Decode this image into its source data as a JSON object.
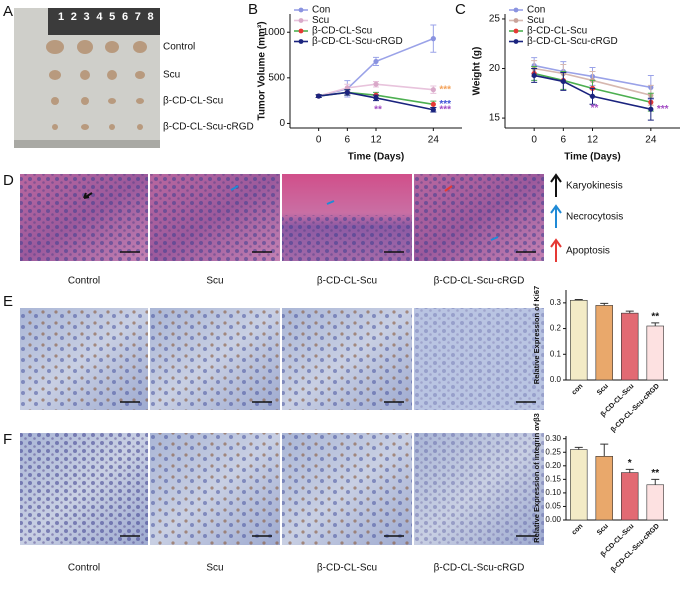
{
  "panels": [
    "A",
    "B",
    "C",
    "D",
    "E",
    "F"
  ],
  "panel_a": {
    "ruler": [
      "1",
      "2",
      "3",
      "4",
      "5",
      "6",
      "7",
      "8"
    ],
    "labels": [
      "Control",
      "Scu",
      "β-CD-CL-Scu",
      "β-CD-CL-Scu-cRGD"
    ]
  },
  "panel_d": {
    "labels": [
      "Control",
      "Scu",
      "β-CD-CL-Scu",
      "β-CD-CL-Scu-cRGD"
    ],
    "legend": [
      "Karyokinesis",
      "Necrocytosis",
      "Apoptosis"
    ]
  },
  "panel_f": {
    "labels": [
      "Control",
      "Scu",
      "β-CD-CL-Scu",
      "β-CD-CL-Scu-cRGD"
    ]
  },
  "chart_data": [
    {
      "type": "line",
      "ylabel": "Tumor Volume (mm³)",
      "xlabel": "Time (Days)",
      "x": [
        0,
        6,
        12,
        24
      ],
      "xlim": [
        -6,
        30
      ],
      "xticks": [
        0,
        6,
        12,
        24
      ],
      "ylim": [
        -50,
        1200
      ],
      "yticks": [
        0,
        500,
        1000
      ],
      "series": [
        {
          "name": "Con",
          "color": "#9aa2e8",
          "marker_color": "#8a93e0",
          "values": [
            300,
            380,
            680,
            930
          ],
          "errors": [
            15,
            90,
            45,
            150
          ]
        },
        {
          "name": "Scu",
          "color": "#e8c3dc",
          "marker_color": "#d9a9c9",
          "values": [
            300,
            390,
            430,
            370
          ],
          "errors": [
            15,
            40,
            30,
            40
          ]
        },
        {
          "name": "β-CD-CL-Scu",
          "color": "#4caf50",
          "marker_color": "#e53935",
          "values": [
            300,
            340,
            310,
            210
          ],
          "errors": [
            15,
            30,
            30,
            35
          ]
        },
        {
          "name": "β-CD-CL-Scu-cRGD",
          "color": "#1a237e",
          "marker_color": "#1a237e",
          "values": [
            300,
            340,
            280,
            150
          ],
          "errors": [
            15,
            30,
            30,
            25
          ]
        }
      ],
      "annotations": [
        {
          "text": "***",
          "color": "#f4a259",
          "x": 24,
          "series": "Scu"
        },
        {
          "text": "***",
          "color": "#3f51d6",
          "x": 24,
          "series": "β-CD-CL-Scu"
        },
        {
          "text": "***",
          "color": "#a24cc4",
          "x": 24,
          "series": "β-CD-CL-Scu-cRGD"
        },
        {
          "text": "**",
          "color": "#a24cc4",
          "x": 12,
          "series": "β-CD-CL-Scu-cRGD"
        }
      ]
    },
    {
      "type": "line",
      "ylabel": "Weight (g)",
      "xlabel": "Time (Days)",
      "x": [
        0,
        6,
        12,
        24
      ],
      "xlim": [
        -6,
        30
      ],
      "xticks": [
        0,
        6,
        12,
        24
      ],
      "ylim": [
        14,
        25.5
      ],
      "yticks": [
        15,
        20,
        25
      ],
      "series": [
        {
          "name": "Con",
          "color": "#9aa2e8",
          "marker_color": "#8a93e0",
          "values": [
            20.3,
            19.7,
            19.2,
            18.1
          ],
          "errors": [
            0.8,
            1.0,
            0.9,
            1.2
          ]
        },
        {
          "name": "Scu",
          "color": "#d6b8b0",
          "marker_color": "#c9a29a",
          "values": [
            20.0,
            19.5,
            18.8,
            17.3
          ],
          "errors": [
            0.8,
            0.9,
            0.9,
            1.0
          ]
        },
        {
          "name": "β-CD-CL-Scu",
          "color": "#4caf50",
          "marker_color": "#e53935",
          "values": [
            19.5,
            18.8,
            18.0,
            16.6
          ],
          "errors": [
            0.7,
            0.9,
            0.8,
            0.9
          ]
        },
        {
          "name": "β-CD-CL-Scu-cRGD",
          "color": "#1a237e",
          "marker_color": "#1a237e",
          "values": [
            19.3,
            18.7,
            17.2,
            15.9
          ],
          "errors": [
            0.7,
            0.9,
            0.8,
            1.1
          ]
        }
      ],
      "annotations": [
        {
          "text": "**",
          "color": "#a24cc4",
          "x": 12,
          "series": "β-CD-CL-Scu-cRGD"
        },
        {
          "text": "***",
          "color": "#a24cc4",
          "x": 24,
          "series": "β-CD-CL-Scu-cRGD"
        }
      ]
    },
    {
      "type": "bar",
      "ylabel": "Relative Expression of Ki67",
      "categories": [
        "con",
        "Scu",
        "β-CD-CL-Scu",
        "β-CD-CL-Scu-cRGD"
      ],
      "values": [
        0.31,
        0.29,
        0.26,
        0.21
      ],
      "errors": [
        0.003,
        0.008,
        0.008,
        0.012
      ],
      "colors": [
        "#f3ebc6",
        "#e9a86b",
        "#e26a73",
        "#fde1e1"
      ],
      "ylim": [
        0,
        0.35
      ],
      "yticks": [
        {
          "value": 0,
          "label": "0.0"
        },
        0.1,
        0.2,
        0.3
      ],
      "annotations": [
        {
          "text": "**",
          "category": "β-CD-CL-Scu-cRGD"
        }
      ]
    },
    {
      "type": "bar",
      "ylabel": "Relative Expression of integrin αvβ3",
      "categories": [
        "con",
        "Scu",
        "β-CD-CL-Scu",
        "β-CD-CL-Scu-cRGD"
      ],
      "values": [
        0.26,
        0.235,
        0.175,
        0.13
      ],
      "errors": [
        0.008,
        0.045,
        0.012,
        0.02
      ],
      "colors": [
        "#f3ebc6",
        "#e9a86b",
        "#e26a73",
        "#fde1e1"
      ],
      "ylim": [
        0,
        0.31
      ],
      "yticks": [
        {
          "value": 0,
          "label": "0.00"
        },
        0.05,
        {
          "value": 0.1,
          "label": "0.10"
        },
        0.15,
        {
          "value": 0.2,
          "label": "0.20"
        },
        0.25,
        {
          "value": 0.3,
          "label": "0.30"
        }
      ],
      "annotations": [
        {
          "text": "*",
          "category": "β-CD-CL-Scu"
        },
        {
          "text": "**",
          "category": "β-CD-CL-Scu-cRGD"
        }
      ]
    }
  ]
}
